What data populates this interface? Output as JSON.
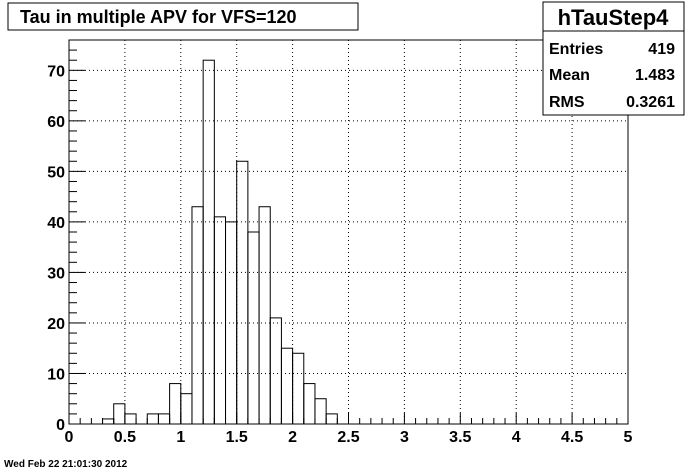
{
  "chart_data": {
    "type": "bar",
    "title": "Tau in multiple APV for VFS=120",
    "xlim": [
      0,
      5
    ],
    "ylim": [
      0,
      76
    ],
    "x_ticks": [
      0,
      0.5,
      1,
      1.5,
      2,
      2.5,
      3,
      3.5,
      4,
      4.5,
      5
    ],
    "x_tick_labels": [
      "0",
      "0.5",
      "1",
      "1.5",
      "2",
      "2.5",
      "3",
      "3.5",
      "4",
      "4.5",
      "5"
    ],
    "y_ticks": [
      0,
      10,
      20,
      30,
      40,
      50,
      60,
      70
    ],
    "y_tick_labels": [
      "0",
      "10",
      "20",
      "30",
      "40",
      "50",
      "60",
      "70"
    ],
    "grid": true,
    "bin_width": 0.1,
    "bin_start": 0,
    "values": [
      0,
      0,
      0,
      1,
      4,
      2,
      0,
      2,
      2,
      8,
      6,
      43,
      72,
      41,
      40,
      52,
      38,
      43,
      21,
      15,
      14,
      8,
      5,
      2,
      0,
      0,
      0,
      0,
      0,
      0,
      0,
      0,
      0,
      0,
      0,
      0,
      0,
      0,
      0,
      0,
      0,
      0,
      0,
      0,
      0,
      0,
      0,
      0,
      0,
      0
    ],
    "stats": {
      "name": "hTauStep4",
      "rows": [
        {
          "label": "Entries",
          "value": "419"
        },
        {
          "label": "Mean",
          "value": "1.483"
        },
        {
          "label": "RMS",
          "value": "0.3261"
        }
      ]
    }
  },
  "footer": {
    "timestamp": "Wed Feb 22 21:01:30 2012"
  }
}
